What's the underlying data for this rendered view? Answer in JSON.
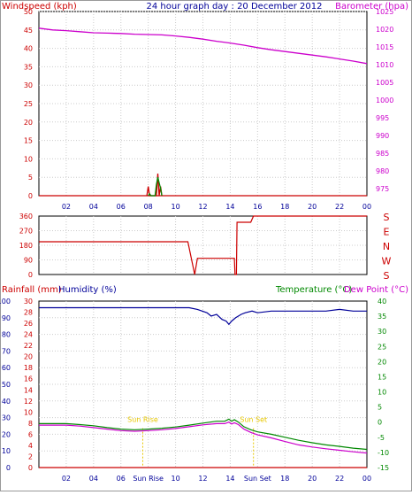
{
  "chart_data": [
    {
      "type": "line",
      "title": "24 hour graph day : 20 December 2012",
      "left_axis": {
        "label": "Windspeed (kph)",
        "ticks": [
          "0",
          "5",
          "10",
          "15",
          "20",
          "25",
          "30",
          "35",
          "40",
          "45",
          "50"
        ],
        "range": [
          0,
          50
        ]
      },
      "right_axis": {
        "label": "Barometer (hpa)",
        "ticks": [
          "975",
          "980",
          "985",
          "990",
          "995",
          "1000",
          "1005",
          "1010",
          "1015",
          "1020",
          "1025"
        ],
        "range": [
          973,
          1025
        ]
      },
      "x_ticks": [
        "02",
        "04",
        "06",
        "08",
        "10",
        "12",
        "14",
        "16",
        "18",
        "20",
        "22",
        "00"
      ],
      "x_range": [
        0,
        24
      ],
      "grid": true,
      "series": [
        {
          "name": "Barometer (hpa)",
          "axis": "right",
          "color": "#cc00cc",
          "x": [
            0,
            1,
            2,
            3,
            4,
            5,
            6,
            7,
            8,
            9,
            10,
            11,
            12,
            13,
            14,
            15,
            16,
            17,
            18,
            19,
            20,
            21,
            22,
            23,
            24
          ],
          "y": [
            1020.3,
            1019.8,
            1019.6,
            1019.3,
            1019.0,
            1018.9,
            1018.8,
            1018.6,
            1018.5,
            1018.4,
            1018.1,
            1017.7,
            1017.2,
            1016.6,
            1016.1,
            1015.5,
            1014.8,
            1014.2,
            1013.7,
            1013.2,
            1012.7,
            1012.2,
            1011.6,
            1011.0,
            1010.3
          ]
        },
        {
          "name": "Wind gust",
          "axis": "left",
          "color": "#cc0000",
          "x": [
            7.9,
            8.0,
            8.1,
            8.6,
            8.7,
            8.8,
            8.9,
            9.0
          ],
          "y": [
            0,
            2.5,
            0,
            0,
            6,
            0,
            2.5,
            0
          ]
        },
        {
          "name": "Wind average",
          "axis": "left",
          "color": "#008800",
          "x": [
            8.0,
            8.1,
            8.2,
            8.5,
            8.6,
            8.7,
            8.8,
            8.9,
            9.0
          ],
          "y": [
            0,
            0.5,
            0,
            0,
            3,
            5,
            3.5,
            2,
            0
          ]
        }
      ]
    },
    {
      "type": "line",
      "left_axis": {
        "ticks": [
          "0",
          "90",
          "180",
          "270",
          "360"
        ],
        "range": [
          0,
          360
        ]
      },
      "right_axis": {
        "ticks": [
          "S",
          "W",
          "N",
          "E",
          "S"
        ]
      },
      "x_range": [
        0,
        24
      ],
      "grid": true,
      "series": [
        {
          "name": "Wind direction",
          "color": "#cc0000",
          "x": [
            0,
            10.9,
            11.4,
            11.6,
            14.3,
            14.35,
            14.45,
            14.5,
            15.5,
            15.7,
            24
          ],
          "y": [
            202,
            202,
            0,
            100,
            100,
            0,
            0,
            322,
            322,
            360,
            360
          ]
        }
      ]
    },
    {
      "type": "line",
      "left_labels": [
        "Rainfall (mm)",
        "Humidity (%)"
      ],
      "right_labels": [
        "Temperature (°C)",
        "Dew Point (°C)"
      ],
      "left_axis_rain": {
        "ticks": [
          "0",
          "2",
          "4",
          "6",
          "8",
          "10",
          "12",
          "14",
          "16",
          "18",
          "20",
          "22",
          "24",
          "26",
          "28",
          "30"
        ],
        "range": [
          0,
          30
        ]
      },
      "left_axis_hum": {
        "ticks": [
          "0",
          "10",
          "20",
          "30",
          "40",
          "50",
          "60",
          "70",
          "80",
          "90",
          "100"
        ],
        "range": [
          0,
          100
        ]
      },
      "right_axis": {
        "ticks": [
          "-15",
          "-10",
          "-5",
          "0",
          "5",
          "10",
          "15",
          "20",
          "25",
          "30",
          "35",
          "40"
        ],
        "range": [
          -15,
          40
        ]
      },
      "x_ticks": [
        "02",
        "04",
        "06",
        "Sun Rise",
        "10",
        "12",
        "14",
        "Sun Set",
        "18",
        "20",
        "22",
        "00"
      ],
      "x_range": [
        0,
        24
      ],
      "grid": true,
      "annotations": [
        {
          "text": "Sun Rise",
          "x": 7.6,
          "y_hum": 30
        },
        {
          "text": "Sun Set",
          "x": 15.7,
          "y_hum": 30
        }
      ],
      "series": [
        {
          "name": "Humidity (%)",
          "axis": "humidity",
          "color": "#000099",
          "x": [
            0,
            11,
            11.6,
            12.3,
            12.6,
            13,
            13.4,
            13.7,
            13.9,
            14.1,
            14.4,
            14.8,
            15.1,
            15.6,
            16,
            17,
            18,
            19,
            20,
            21,
            22,
            23,
            24
          ],
          "y": [
            96,
            96,
            95,
            93,
            91,
            92,
            89,
            88,
            86,
            88,
            90,
            92,
            93,
            94,
            93,
            94,
            94,
            94,
            94,
            94,
            95,
            94,
            94
          ]
        },
        {
          "name": "Temperature (°C)",
          "axis": "temp",
          "color": "#008800",
          "x": [
            0,
            2,
            3,
            4,
            5,
            6,
            7,
            8,
            9,
            10,
            11,
            12,
            13,
            13.6,
            13.9,
            14.1,
            14.3,
            14.6,
            15,
            15.5,
            16,
            17,
            18,
            19,
            20,
            21,
            22,
            23,
            24
          ],
          "y": [
            -0.5,
            -0.5,
            -0.8,
            -1.2,
            -1.8,
            -2.3,
            -2.5,
            -2.3,
            -2.0,
            -1.6,
            -1.0,
            -0.3,
            0.3,
            0.3,
            1.0,
            0.3,
            0.8,
            0.0,
            -1.5,
            -2.5,
            -3.2,
            -4.0,
            -5.0,
            -6.0,
            -6.8,
            -7.5,
            -8.0,
            -8.6,
            -9.0
          ]
        },
        {
          "name": "Dew Point (°C)",
          "axis": "temp",
          "color": "#cc00cc",
          "x": [
            0,
            2,
            3,
            4,
            5,
            6,
            7,
            8,
            9,
            10,
            11,
            12,
            13,
            13.6,
            13.9,
            14.1,
            14.3,
            14.6,
            15,
            15.5,
            16,
            17,
            18,
            19,
            20,
            21,
            22,
            23,
            24
          ],
          "y": [
            -1.0,
            -1.0,
            -1.3,
            -1.8,
            -2.3,
            -2.8,
            -3.0,
            -2.8,
            -2.5,
            -2.1,
            -1.5,
            -0.9,
            -0.5,
            -0.5,
            0.0,
            -0.6,
            -0.2,
            -0.8,
            -2.3,
            -3.4,
            -4.2,
            -5.2,
            -6.4,
            -7.5,
            -8.2,
            -8.8,
            -9.3,
            -9.8,
            -10.2
          ]
        },
        {
          "name": "Rainfall (mm)",
          "axis": "rain",
          "color": "#cc0000",
          "x": [
            0,
            24
          ],
          "y": [
            0,
            0
          ]
        }
      ]
    }
  ]
}
